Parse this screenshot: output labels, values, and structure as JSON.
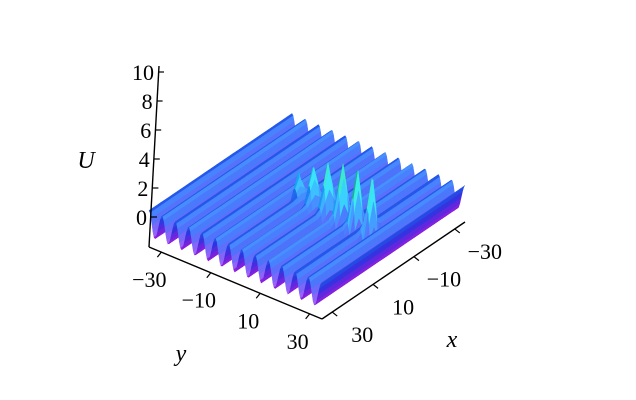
{
  "chart_data": {
    "type": "surface3d",
    "zlabel": "U",
    "xlabel": "x",
    "ylabel": "y",
    "zticks": [
      {
        "value": 0,
        "label": "0"
      },
      {
        "value": 2,
        "label": "2"
      },
      {
        "value": 4,
        "label": "4"
      },
      {
        "value": 6,
        "label": "6"
      },
      {
        "value": 8,
        "label": "8"
      },
      {
        "value": 10,
        "label": "10"
      }
    ],
    "xticks": [
      {
        "value": -30,
        "label": "−30"
      },
      {
        "value": -10,
        "label": "−10"
      },
      {
        "value": 10,
        "label": "10"
      },
      {
        "value": 30,
        "label": "30"
      }
    ],
    "yticks": [
      {
        "value": -30,
        "label": "−30"
      },
      {
        "value": -10,
        "label": "−10"
      },
      {
        "value": 10,
        "label": "10"
      },
      {
        "value": 30,
        "label": "30"
      }
    ],
    "xlim": [
      -35,
      35
    ],
    "ylim": [
      -35,
      35
    ],
    "zlim": [
      -1,
      10
    ],
    "background_wave": {
      "amplitude": 3.4,
      "baseline": 0.7,
      "ridge_count": 13,
      "ridge_direction": "parallel to x-axis"
    },
    "peaks": [
      {
        "y": -4,
        "height": 6.2
      },
      {
        "y": 2,
        "height": 6.8
      },
      {
        "y": 8,
        "height": 7.5
      },
      {
        "y": 14,
        "height": 8.3
      },
      {
        "y": 20,
        "height": 9.2
      },
      {
        "y": 26,
        "height": 10.0
      }
    ],
    "colormap": [
      "#c81ee6",
      "#7722dd",
      "#2a35e0",
      "#1f6ff0",
      "#14b0f0",
      "#16c8c8",
      "#1a9c4e",
      "#3ea82c",
      "#b84a1a"
    ],
    "grid": false,
    "legend": "none"
  }
}
